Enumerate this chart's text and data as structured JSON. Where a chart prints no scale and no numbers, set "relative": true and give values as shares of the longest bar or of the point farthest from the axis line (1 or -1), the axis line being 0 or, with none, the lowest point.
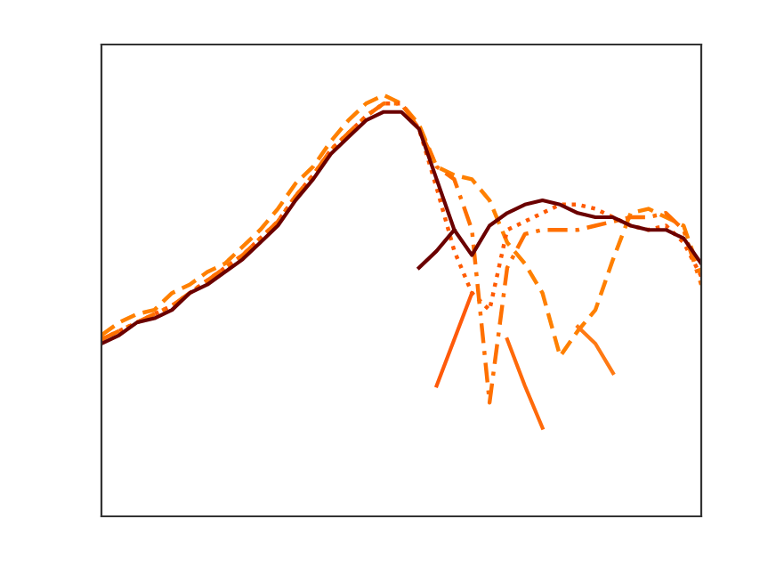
{
  "chart_data": {
    "type": "line",
    "relative": true,
    "marker": "none",
    "categories": [
      null,
      null,
      null,
      null,
      null,
      null,
      null,
      null,
      null,
      null,
      null,
      null,
      null,
      null,
      null,
      null,
      null,
      null,
      null,
      null,
      null,
      null,
      null,
      null,
      null,
      null,
      null,
      null,
      null,
      null,
      null,
      null,
      null,
      null,
      null
    ],
    "series": [
      {
        "color": "#ff8000",
        "line_style": "dashed",
        "values": [
          0.43,
          0.46,
          0.48,
          0.49,
          0.53,
          0.55,
          0.58,
          0.6,
          0.64,
          0.68,
          0.73,
          0.79,
          0.83,
          0.89,
          0.94,
          0.98,
          1.0,
          0.98,
          0.93,
          0.83,
          0.81,
          0.8,
          0.75,
          0.65,
          0.6,
          0.53,
          0.38,
          0.44,
          0.49,
          0.61,
          0.72,
          0.73,
          0.71,
          0.69,
          0.57
        ]
      },
      {
        "color": "#ff5a00",
        "line_style": "dotted",
        "values": [
          0.42,
          0.44,
          0.46,
          0.48,
          0.5,
          0.53,
          0.56,
          0.59,
          0.62,
          0.66,
          0.7,
          0.76,
          0.81,
          0.87,
          0.91,
          0.95,
          0.98,
          0.98,
          0.92,
          0.78,
          0.63,
          0.53,
          0.49,
          0.68,
          0.7,
          0.72,
          0.74,
          0.74,
          0.73,
          0.71,
          0.69,
          0.68,
          0.69,
          0.65,
          0.57
        ]
      },
      {
        "color": "#ff7000",
        "line_style": "dashdot",
        "values": [
          0.42,
          0.44,
          0.46,
          0.48,
          0.5,
          0.53,
          0.56,
          0.59,
          0.62,
          0.66,
          0.7,
          0.76,
          0.81,
          0.87,
          0.91,
          0.95,
          0.98,
          0.98,
          0.92,
          0.83,
          0.8,
          0.68,
          0.27,
          0.59,
          0.67,
          0.68,
          0.68,
          0.68,
          0.69,
          0.7,
          0.71,
          0.71,
          0.72,
          0.68,
          0.55
        ]
      },
      {
        "color": "#ff5a0a",
        "line_style": "solid",
        "values": [
          null,
          null,
          null,
          null,
          null,
          null,
          null,
          null,
          null,
          null,
          null,
          null,
          null,
          null,
          null,
          null,
          null,
          null,
          null,
          0.31,
          0.42,
          0.53,
          null,
          null,
          null,
          null,
          null,
          null,
          null,
          null,
          null,
          null,
          null,
          null,
          null
        ]
      },
      {
        "color": "#ff6a0a",
        "line_style": "solid",
        "values": [
          null,
          null,
          null,
          null,
          null,
          null,
          null,
          null,
          null,
          null,
          null,
          null,
          null,
          null,
          null,
          null,
          null,
          null,
          null,
          null,
          null,
          null,
          null,
          0.42,
          0.31,
          0.21,
          null,
          null,
          null,
          null,
          null,
          null,
          null,
          null,
          null
        ]
      },
      {
        "color": "#ff7a14",
        "line_style": "solid",
        "values": [
          null,
          null,
          null,
          null,
          null,
          null,
          null,
          null,
          null,
          null,
          null,
          null,
          null,
          null,
          null,
          null,
          null,
          null,
          null,
          null,
          null,
          null,
          null,
          null,
          null,
          null,
          null,
          0.45,
          0.41,
          0.34,
          null,
          null,
          null,
          null,
          null
        ]
      },
      {
        "color": "#6b0000",
        "line_style": "solid",
        "values": [
          null,
          null,
          null,
          null,
          null,
          null,
          null,
          null,
          null,
          null,
          null,
          null,
          null,
          null,
          null,
          null,
          null,
          null,
          0.59,
          0.63,
          0.68,
          null,
          null,
          null,
          null,
          null,
          null,
          null,
          null,
          null,
          null,
          null,
          null,
          null,
          null
        ]
      },
      {
        "color": "#6b0000",
        "line_style": "solid",
        "values": [
          0.41,
          0.43,
          0.46,
          0.47,
          0.49,
          0.53,
          0.55,
          0.58,
          0.61,
          0.65,
          0.69,
          0.75,
          0.8,
          0.86,
          0.9,
          0.94,
          0.96,
          0.96,
          0.92,
          0.8,
          0.68,
          0.62,
          0.69,
          0.72,
          0.74,
          0.75,
          0.74,
          0.72,
          0.71,
          0.71,
          0.69,
          0.68,
          0.68,
          0.66,
          0.6
        ]
      }
    ]
  }
}
